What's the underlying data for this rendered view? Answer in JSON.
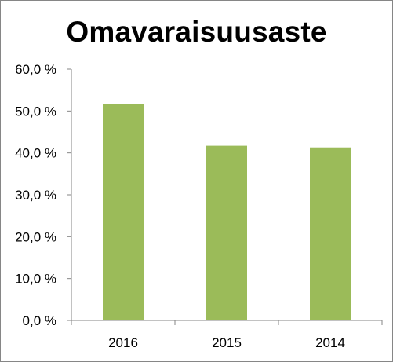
{
  "chart_data": {
    "type": "bar",
    "title": "Omavaraisuusaste",
    "xlabel": "",
    "ylabel": "",
    "categories": [
      "2016",
      "2015",
      "2014"
    ],
    "values": [
      51.6,
      41.7,
      41.3
    ],
    "ylim": [
      0,
      60
    ],
    "yticks": [
      0,
      10,
      20,
      30,
      40,
      50,
      60
    ],
    "ytick_labels": [
      "0,0 %",
      "10,0 %",
      "20,0 %",
      "30,0 %",
      "40,0 %",
      "50,0 %",
      "60,0 %"
    ],
    "grid": false,
    "legend": "none",
    "bar_color": "#9BBB59"
  },
  "colors": {
    "bar": "#9BBB59",
    "axis": "#868686",
    "border": "#868686"
  }
}
